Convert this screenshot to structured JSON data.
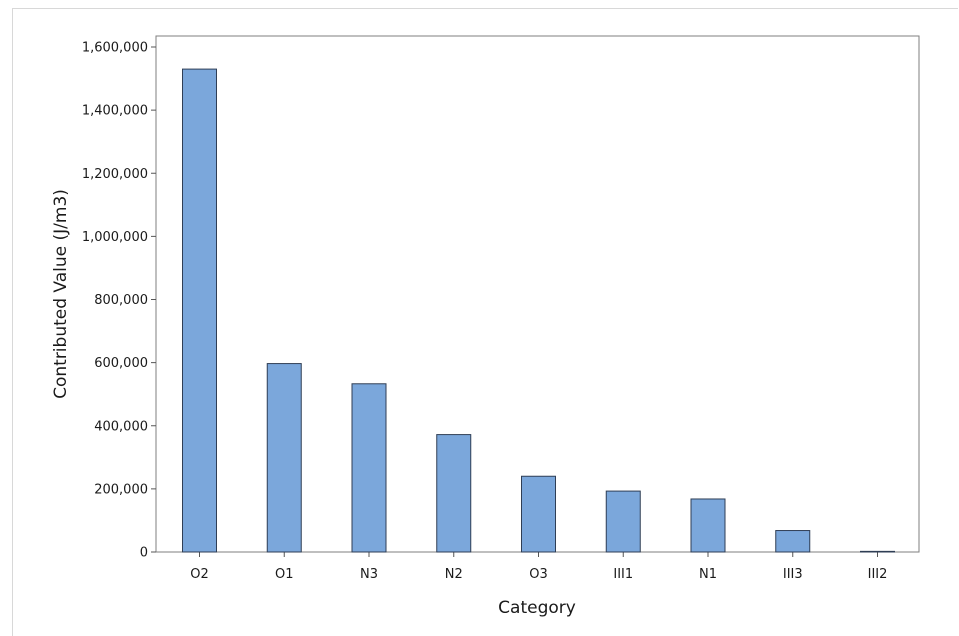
{
  "chart_data": {
    "type": "bar",
    "title": "",
    "xlabel": "Category",
    "ylabel": "Contributed Value (J/m3)",
    "categories": [
      "O2",
      "O1",
      "N3",
      "N2",
      "O3",
      "III1",
      "N1",
      "III3",
      "III2"
    ],
    "values": [
      1530000,
      597000,
      533000,
      372000,
      240000,
      193000,
      168000,
      68000,
      2000
    ],
    "ylim": [
      0,
      1600000
    ],
    "yticks": [
      0,
      200000,
      400000,
      600000,
      800000,
      1000000,
      1200000,
      1400000,
      1600000
    ],
    "ytick_labels": [
      "0",
      "200,000",
      "400,000",
      "600,000",
      "800,000",
      "1,000,000",
      "1,200,000",
      "1,400,000",
      "1,600,000"
    ],
    "grid": false,
    "legend": "none",
    "colors": {
      "bar_fill": "#7ba7db",
      "bar_stroke": "#2f3e55",
      "axis": "#555555"
    }
  }
}
